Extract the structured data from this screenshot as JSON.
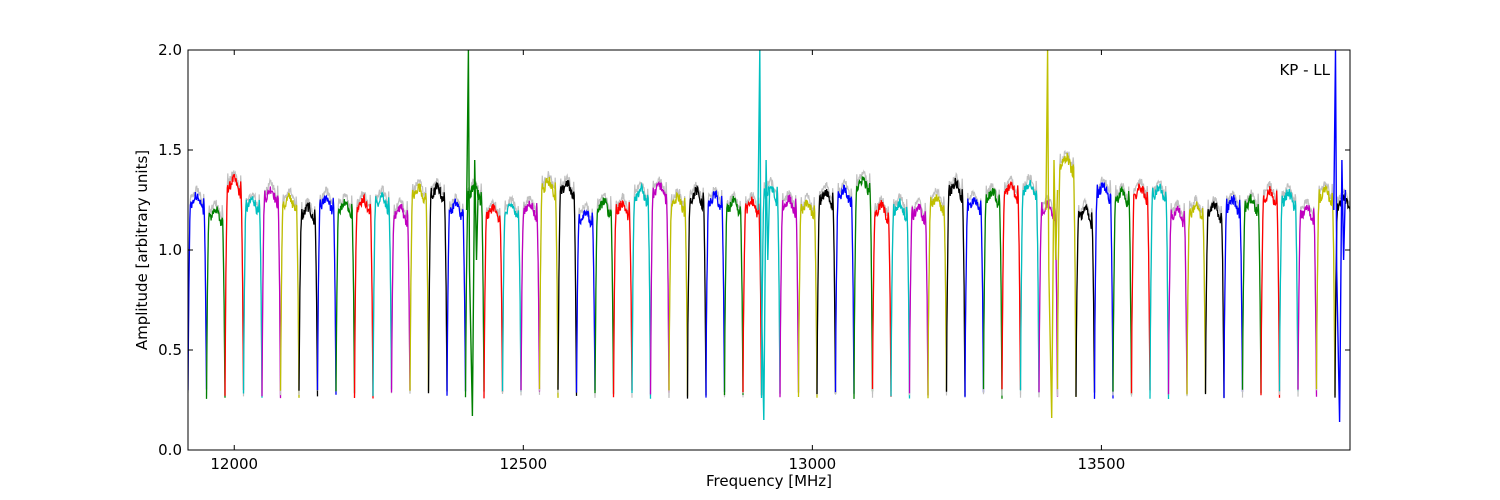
{
  "chart_data": {
    "type": "line",
    "title": "",
    "xlabel": "Frequency [MHz]",
    "ylabel": "Amplitude [arbitrary units]",
    "annotation": "KP - LL",
    "xlim": [
      11920,
      13930
    ],
    "ylim": [
      0.0,
      2.0
    ],
    "xticks": [
      12000,
      12500,
      13000,
      13500
    ],
    "yticks": [
      0.0,
      0.5,
      1.0,
      1.5,
      2.0
    ],
    "xtick_labels": [
      "12000",
      "12500",
      "13000",
      "13500"
    ],
    "ytick_labels": [
      "0.0",
      "0.5",
      "1.0",
      "1.5",
      "2.0"
    ],
    "grid": false,
    "legend": "none",
    "channel_width_mhz": 32,
    "channel_start_mhz": 11920,
    "colors": [
      "#0000ff",
      "#008000",
      "#ff0000",
      "#00bfbf",
      "#bf00bf",
      "#bfbf00",
      "#000000"
    ],
    "background_trace_color": "#c0c0c0",
    "series": [
      {
        "start": 11920,
        "level": 1.26,
        "color": "#0000ff"
      },
      {
        "start": 11952,
        "level": 1.19,
        "color": "#008000"
      },
      {
        "start": 11984,
        "level": 1.34,
        "color": "#ff0000"
      },
      {
        "start": 12016,
        "level": 1.24,
        "color": "#00bfbf"
      },
      {
        "start": 12048,
        "level": 1.29,
        "color": "#bf00bf"
      },
      {
        "start": 12080,
        "level": 1.25,
        "color": "#bfbf00"
      },
      {
        "start": 12112,
        "level": 1.2,
        "color": "#000000"
      },
      {
        "start": 12144,
        "level": 1.25,
        "color": "#0000ff"
      },
      {
        "start": 12176,
        "level": 1.23,
        "color": "#008000"
      },
      {
        "start": 12208,
        "level": 1.24,
        "color": "#ff0000"
      },
      {
        "start": 12240,
        "level": 1.26,
        "color": "#00bfbf"
      },
      {
        "start": 12272,
        "level": 1.2,
        "color": "#bf00bf"
      },
      {
        "start": 12304,
        "level": 1.3,
        "color": "#bfbf00"
      },
      {
        "start": 12336,
        "level": 1.3,
        "color": "#000000"
      },
      {
        "start": 12368,
        "level": 1.22,
        "color": "#0000ff"
      },
      {
        "start": 12400,
        "level": 1.3,
        "color": "#008000"
      },
      {
        "start": 12432,
        "level": 1.2,
        "color": "#ff0000"
      },
      {
        "start": 12464,
        "level": 1.21,
        "color": "#00bfbf"
      },
      {
        "start": 12496,
        "level": 1.22,
        "color": "#bf00bf"
      },
      {
        "start": 12528,
        "level": 1.33,
        "color": "#bfbf00"
      },
      {
        "start": 12560,
        "level": 1.32,
        "color": "#000000"
      },
      {
        "start": 12592,
        "level": 1.18,
        "color": "#0000ff"
      },
      {
        "start": 12624,
        "level": 1.23,
        "color": "#008000"
      },
      {
        "start": 12656,
        "level": 1.22,
        "color": "#ff0000"
      },
      {
        "start": 12688,
        "level": 1.29,
        "color": "#00bfbf"
      },
      {
        "start": 12720,
        "level": 1.31,
        "color": "#bf00bf"
      },
      {
        "start": 12752,
        "level": 1.25,
        "color": "#bfbf00"
      },
      {
        "start": 12784,
        "level": 1.28,
        "color": "#000000"
      },
      {
        "start": 12816,
        "level": 1.26,
        "color": "#0000ff"
      },
      {
        "start": 12848,
        "level": 1.23,
        "color": "#008000"
      },
      {
        "start": 12880,
        "level": 1.23,
        "color": "#ff0000"
      },
      {
        "start": 12912,
        "level": 1.3,
        "color": "#00bfbf"
      },
      {
        "start": 12944,
        "level": 1.24,
        "color": "#bf00bf"
      },
      {
        "start": 12976,
        "level": 1.22,
        "color": "#bfbf00"
      },
      {
        "start": 13008,
        "level": 1.28,
        "color": "#000000"
      },
      {
        "start": 13040,
        "level": 1.29,
        "color": "#0000ff"
      },
      {
        "start": 13072,
        "level": 1.34,
        "color": "#008000"
      },
      {
        "start": 13104,
        "level": 1.21,
        "color": "#ff0000"
      },
      {
        "start": 13136,
        "level": 1.22,
        "color": "#00bfbf"
      },
      {
        "start": 13168,
        "level": 1.2,
        "color": "#bf00bf"
      },
      {
        "start": 13200,
        "level": 1.25,
        "color": "#bfbf00"
      },
      {
        "start": 13232,
        "level": 1.32,
        "color": "#000000"
      },
      {
        "start": 13264,
        "level": 1.24,
        "color": "#0000ff"
      },
      {
        "start": 13296,
        "level": 1.28,
        "color": "#008000"
      },
      {
        "start": 13328,
        "level": 1.31,
        "color": "#ff0000"
      },
      {
        "start": 13360,
        "level": 1.32,
        "color": "#00bfbf"
      },
      {
        "start": 13392,
        "level": 1.22,
        "color": "#bf00bf"
      },
      {
        "start": 13424,
        "level": 1.45,
        "color": "#bfbf00"
      },
      {
        "start": 13456,
        "level": 1.19,
        "color": "#000000"
      },
      {
        "start": 13488,
        "level": 1.31,
        "color": "#0000ff"
      },
      {
        "start": 13520,
        "level": 1.28,
        "color": "#008000"
      },
      {
        "start": 13552,
        "level": 1.3,
        "color": "#ff0000"
      },
      {
        "start": 13584,
        "level": 1.3,
        "color": "#00bfbf"
      },
      {
        "start": 13616,
        "level": 1.19,
        "color": "#bf00bf"
      },
      {
        "start": 13648,
        "level": 1.21,
        "color": "#bfbf00"
      },
      {
        "start": 13680,
        "level": 1.21,
        "color": "#000000"
      },
      {
        "start": 13712,
        "level": 1.24,
        "color": "#0000ff"
      },
      {
        "start": 13744,
        "level": 1.24,
        "color": "#008000"
      },
      {
        "start": 13776,
        "level": 1.28,
        "color": "#ff0000"
      },
      {
        "start": 13808,
        "level": 1.27,
        "color": "#00bfbf"
      },
      {
        "start": 13840,
        "level": 1.2,
        "color": "#bf00bf"
      },
      {
        "start": 13872,
        "level": 1.29,
        "color": "#bfbf00"
      },
      {
        "start": 13904,
        "level": 1.25,
        "color": "#000000"
      }
    ],
    "spikes": [
      {
        "x": 12408,
        "top": 2.0,
        "bottom": 0.17,
        "color": "#008000"
      },
      {
        "x": 12912,
        "top": 2.0,
        "bottom": 0.15,
        "color": "#00bfbf"
      },
      {
        "x": 13410,
        "top": 2.0,
        "bottom": 0.16,
        "color": "#bfbf00"
      },
      {
        "x": 13908,
        "top": 2.0,
        "bottom": 0.14,
        "color": "#0000ff"
      }
    ]
  }
}
